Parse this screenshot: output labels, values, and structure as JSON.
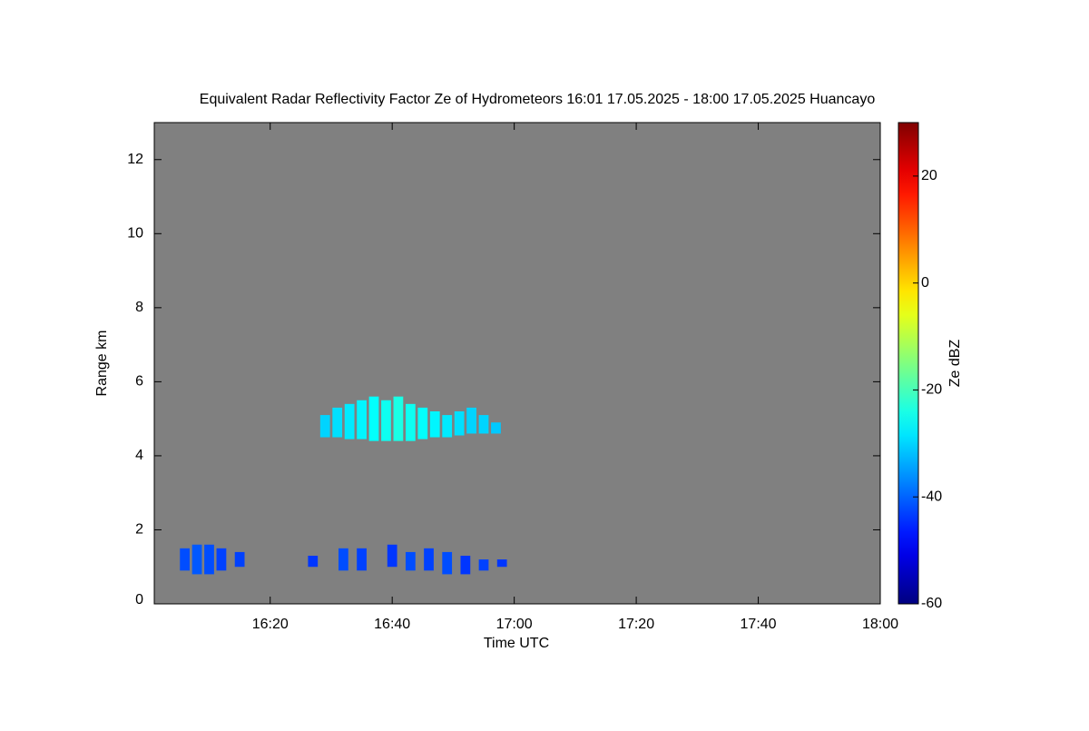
{
  "chart_data": {
    "type": "heatmap",
    "title": "Equivalent Radar Reflectivity Factor Ze of Hydrometeors   16:01 17.05.2025 - 18:00 17.05.2025 Huancayo",
    "xlabel": "Time UTC",
    "ylabel": "Range km",
    "colorbar_label": "Ze dBZ",
    "xlim": [
      961,
      1080
    ],
    "xticks": [
      {
        "value": 980,
        "label": "16:20"
      },
      {
        "value": 1000,
        "label": "16:40"
      },
      {
        "value": 1020,
        "label": "17:00"
      },
      {
        "value": 1040,
        "label": "17:20"
      },
      {
        "value": 1060,
        "label": "17:40"
      },
      {
        "value": 1080,
        "label": "18:00"
      }
    ],
    "ylim": [
      0,
      13
    ],
    "yticks": [
      0,
      2,
      4,
      6,
      8,
      10,
      12
    ],
    "clim": [
      -60,
      30
    ],
    "cticks": [
      -60,
      -40,
      -20,
      0,
      20
    ],
    "colormap": "jet",
    "background": "#808080",
    "cells": {
      "x": [
        989,
        991,
        993,
        995,
        997,
        999,
        1001,
        1003,
        1005,
        1007,
        1009,
        1011,
        1013,
        1015,
        1017,
        966,
        968,
        970,
        972,
        975,
        987,
        992,
        995,
        1000,
        1003,
        1006,
        1009,
        1012,
        1015,
        1018
      ],
      "y_bottom": [
        4.5,
        4.5,
        4.45,
        4.45,
        4.4,
        4.4,
        4.4,
        4.4,
        4.45,
        4.5,
        4.5,
        4.55,
        4.6,
        4.6,
        4.6,
        0.9,
        0.8,
        0.8,
        0.9,
        1.0,
        1.0,
        0.9,
        0.9,
        1.0,
        0.9,
        0.9,
        0.8,
        0.8,
        0.9,
        1.0
      ],
      "y_top": [
        5.1,
        5.3,
        5.4,
        5.5,
        5.6,
        5.5,
        5.6,
        5.4,
        5.3,
        5.2,
        5.1,
        5.2,
        5.3,
        5.1,
        4.9,
        1.5,
        1.6,
        1.6,
        1.5,
        1.4,
        1.3,
        1.5,
        1.5,
        1.6,
        1.4,
        1.5,
        1.4,
        1.3,
        1.2,
        1.2
      ],
      "values": [
        -30,
        -29,
        -28,
        -27,
        -26,
        -25,
        -24,
        -25,
        -26,
        -27,
        -28,
        -29,
        -30,
        -30,
        -31,
        -42,
        -41,
        -42,
        -43,
        -43,
        -44,
        -42,
        -43,
        -44,
        -42,
        -43,
        -42,
        -44,
        -43,
        -44
      ]
    }
  }
}
